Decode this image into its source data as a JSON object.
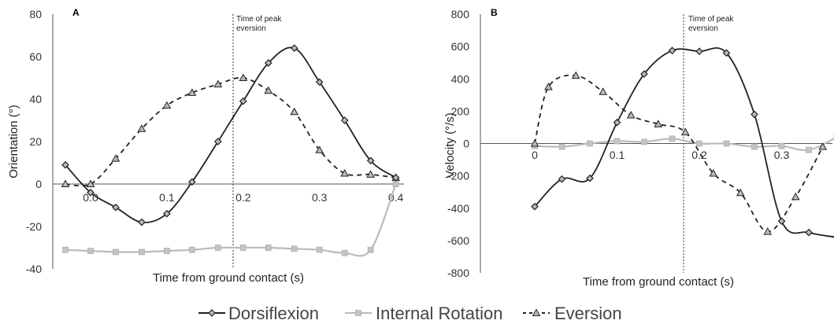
{
  "chart_data": [
    {
      "type": "line",
      "panel_label": "A",
      "xlabel": "Time from ground contact (s)",
      "ylabel": "Orientation (°)",
      "ylim": [
        -40,
        80
      ],
      "yticks": [
        -40,
        -20,
        0,
        20,
        40,
        60,
        80
      ],
      "xlim": [
        -0.033,
        0.4
      ],
      "xtick_labels": [
        {
          "x": 0.0,
          "label": "0.0"
        },
        {
          "x": 0.1,
          "label": "0.1"
        },
        {
          "x": 0.2,
          "label": "0.2"
        },
        {
          "x": 0.3,
          "label": "0.3"
        },
        {
          "x": 0.4,
          "label": "0.4"
        }
      ],
      "vline": {
        "x": 0.19,
        "label": "Time of peak eversion"
      },
      "grid": false,
      "series": [
        {
          "name": "Dorsiflexion",
          "color": "#222222",
          "dash": "none",
          "marker": "diamond",
          "smooth": true,
          "x": [
            -0.033,
            -0.0,
            0.033,
            0.067,
            0.1,
            0.133,
            0.167,
            0.2,
            0.233,
            0.267,
            0.3,
            0.333,
            0.367,
            0.4
          ],
          "y": [
            9,
            -4,
            -11,
            -18,
            -14,
            1,
            20,
            39,
            57,
            64,
            48,
            30,
            11,
            3
          ]
        },
        {
          "name": "Internal Rotation",
          "color": "#bbbbbb",
          "dash": "none",
          "marker": "square",
          "smooth": true,
          "x": [
            -0.033,
            -0.0,
            0.033,
            0.067,
            0.1,
            0.133,
            0.167,
            0.2,
            0.233,
            0.267,
            0.3,
            0.333,
            0.367,
            0.4
          ],
          "y": [
            -31,
            -31.5,
            -32,
            -32,
            -31.5,
            -31,
            -30,
            -30,
            -30,
            -30.5,
            -31,
            -32.5,
            -31,
            0
          ]
        },
        {
          "name": "Eversion",
          "color": "#222222",
          "dash": "6,5",
          "marker": "triangle",
          "smooth": true,
          "x": [
            -0.033,
            0.0,
            0.033,
            0.067,
            0.1,
            0.133,
            0.167,
            0.2,
            0.233,
            0.267,
            0.3,
            0.333,
            0.367,
            0.4
          ],
          "y": [
            0,
            0,
            12,
            26,
            37,
            43,
            47,
            50,
            44,
            34,
            16,
            5,
            4.5,
            3
          ]
        }
      ]
    },
    {
      "type": "line",
      "panel_label": "B",
      "xlabel": "Time from ground contact (s)",
      "ylabel": "Velocity (°/s)",
      "ylim": [
        -800,
        800
      ],
      "yticks": [
        -800,
        -600,
        -400,
        -200,
        0,
        200,
        400,
        600,
        800
      ],
      "xlim": [
        0.0,
        0.367
      ],
      "xtick_labels": [
        {
          "x": 0.0,
          "label": "0"
        },
        {
          "x": 0.1,
          "label": "0.1"
        },
        {
          "x": 0.2,
          "label": "0.2"
        },
        {
          "x": 0.3,
          "label": "0.3"
        }
      ],
      "vline": {
        "x": 0.19,
        "label": "Time of peak eversion"
      },
      "grid": false,
      "series": [
        {
          "name": "Dorsiflexion",
          "color": "#222222",
          "dash": "none",
          "marker": "diamond",
          "smooth": true,
          "x": [
            0.0,
            0.033,
            0.067,
            0.1,
            0.133,
            0.167,
            0.2,
            0.233,
            0.267,
            0.3,
            0.333,
            0.367
          ],
          "y": [
            -390,
            -220,
            -215,
            130,
            430,
            575,
            570,
            560,
            180,
            -480,
            -550,
            -580
          ]
        },
        {
          "name": "Internal Rotation",
          "color": "#bbbbbb",
          "dash": "none",
          "marker": "square",
          "smooth": true,
          "x": [
            0.0,
            0.033,
            0.067,
            0.1,
            0.133,
            0.167,
            0.2,
            0.233,
            0.267,
            0.3,
            0.333,
            0.367
          ],
          "y": [
            -15,
            -20,
            0,
            15,
            10,
            30,
            0,
            0,
            -20,
            -15,
            -40,
            40
          ]
        },
        {
          "name": "Eversion",
          "color": "#222222",
          "dash": "6,5",
          "marker": "triangle",
          "smooth": true,
          "x": [
            0.0,
            0.0167,
            0.05,
            0.083,
            0.117,
            0.15,
            0.183,
            0.217,
            0.25,
            0.283,
            0.317,
            0.35
          ],
          "y": [
            0,
            350,
            420,
            320,
            175,
            120,
            70,
            -185,
            -305,
            -545,
            -330,
            -20
          ]
        }
      ]
    }
  ],
  "legend": {
    "placement": "bottom-center",
    "items": [
      {
        "label": "Dorsiflexion",
        "color": "#222222",
        "dash": "none",
        "marker": "diamond"
      },
      {
        "label": "Internal Rotation",
        "color": "#bbbbbb",
        "dash": "none",
        "marker": "square"
      },
      {
        "label": "Eversion",
        "color": "#222222",
        "dash": "4,4",
        "marker": "triangle"
      }
    ]
  }
}
